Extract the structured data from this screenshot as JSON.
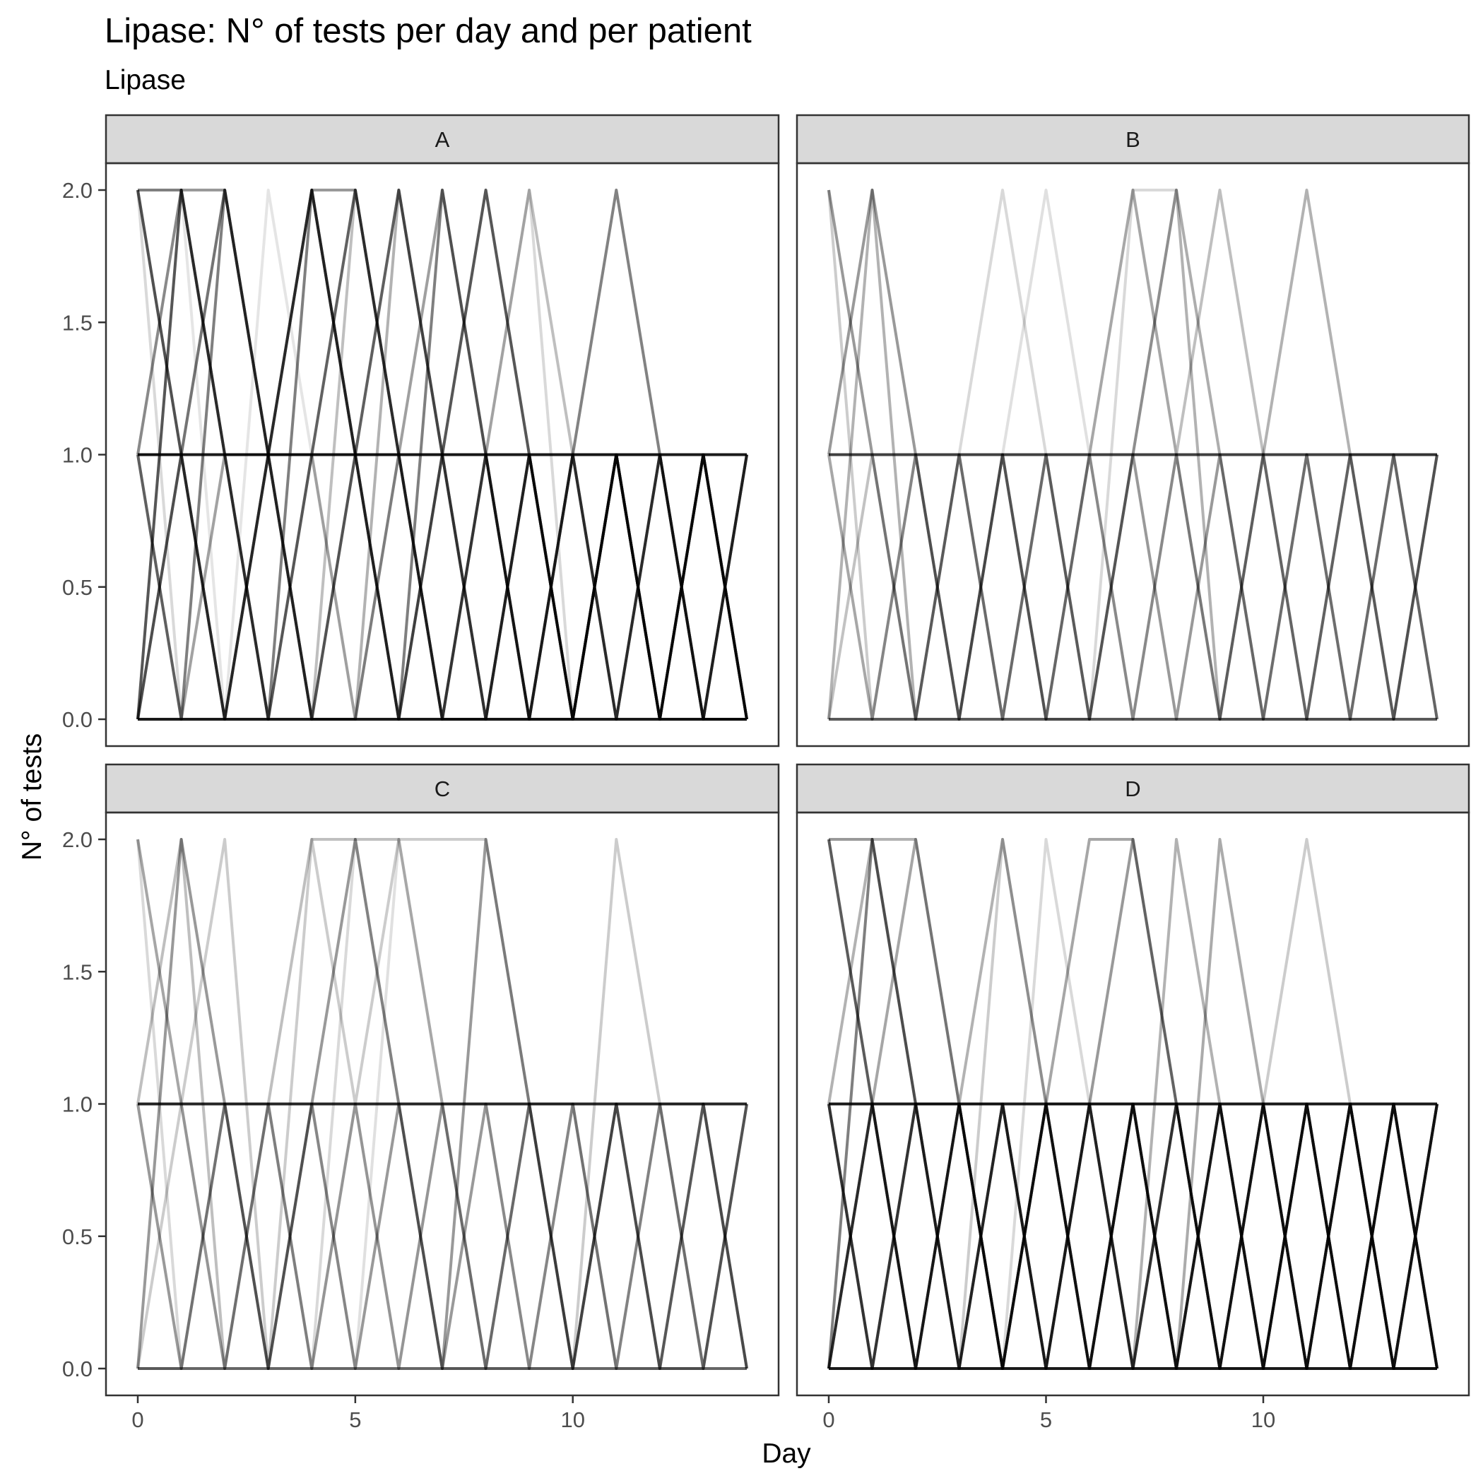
{
  "chart_data": {
    "type": "line",
    "title": "Lipase: N° of tests per day and per patient",
    "subtitle": "Lipase",
    "xlabel": "Day",
    "ylabel": "N° of tests",
    "xlim": [
      0,
      14
    ],
    "ylim": [
      0,
      2
    ],
    "x_ticks": [
      0,
      5,
      10
    ],
    "y_ticks": [
      "0.0",
      "0.5",
      "1.0",
      "1.5",
      "2.0"
    ],
    "grid": false,
    "line_color": "#000000",
    "strip_fill": "#d9d9d9",
    "panels": [
      {
        "label": "A",
        "series": [
          {
            "alpha": 0.9,
            "y": [
              1,
              1,
              1,
              1,
              1,
              1,
              1,
              1,
              1,
              1,
              1,
              1,
              1,
              1,
              1
            ]
          },
          {
            "alpha": 0.9,
            "y": [
              0,
              0,
              0,
              0,
              0,
              0,
              0,
              0,
              0,
              0,
              0,
              0,
              0,
              0,
              0
            ]
          },
          {
            "alpha": 0.55,
            "y": [
              2,
              1,
              0,
              1,
              2,
              1,
              0,
              1,
              2,
              1,
              0,
              1,
              0,
              1,
              0
            ]
          },
          {
            "alpha": 0.55,
            "y": [
              0,
              2,
              1,
              0,
              1,
              2,
              1,
              0,
              1,
              0,
              1,
              0,
              1,
              0,
              1
            ]
          },
          {
            "alpha": 0.5,
            "y": [
              1,
              0,
              2,
              1,
              0,
              1,
              2,
              1,
              0,
              1,
              0,
              1,
              0,
              1,
              0
            ]
          },
          {
            "alpha": 0.5,
            "y": [
              2,
              2,
              1,
              0,
              2,
              1,
              0,
              2,
              1,
              0,
              1,
              0,
              1,
              0,
              0
            ]
          },
          {
            "alpha": 0.45,
            "y": [
              0,
              1,
              0,
              1,
              0,
              0,
              1,
              0,
              0,
              1,
              0,
              1,
              0,
              1,
              0
            ]
          },
          {
            "alpha": 0.4,
            "y": [
              1,
              2,
              2,
              1,
              2,
              2,
              1,
              0,
              1,
              0,
              1,
              2,
              1,
              0,
              1
            ]
          },
          {
            "alpha": 0.35,
            "y": [
              0,
              1,
              2,
              1,
              0,
              1,
              0,
              1,
              0,
              1,
              0,
              1,
              0,
              1,
              0
            ]
          },
          {
            "alpha": 0.3,
            "y": [
              2,
              1,
              0,
              1,
              1,
              0,
              2,
              1,
              0,
              1,
              0,
              1,
              0,
              0,
              1
            ]
          },
          {
            "alpha": 0.3,
            "y": [
              1,
              1,
              2,
              1,
              2,
              1,
              1,
              2,
              1,
              0,
              0,
              1,
              0,
              1,
              0
            ]
          },
          {
            "alpha": 0.25,
            "y": [
              0,
              2,
              1,
              1,
              0,
              2,
              1,
              0,
              1,
              2,
              1,
              0,
              1,
              0,
              1
            ]
          },
          {
            "alpha": 0.25,
            "y": [
              1,
              0,
              1,
              0,
              1,
              1,
              2,
              1,
              2,
              1,
              0,
              1,
              0,
              1,
              0
            ]
          },
          {
            "alpha": 0.15,
            "y": [
              2,
              0,
              1,
              1,
              1,
              2,
              1,
              1,
              0,
              0,
              1,
              2,
              1,
              0,
              1
            ]
          },
          {
            "alpha": 0.15,
            "y": [
              0,
              1,
              0,
              1,
              2,
              1,
              0,
              1,
              1,
              2,
              0,
              1,
              1,
              0,
              0
            ]
          },
          {
            "alpha": 0.1,
            "y": [
              1,
              2,
              0,
              2,
              1,
              0,
              1,
              2,
              1,
              0,
              1,
              1,
              0,
              1,
              0
            ]
          }
        ]
      },
      {
        "label": "B",
        "series": [
          {
            "alpha": 0.75,
            "y": [
              1,
              1,
              1,
              1,
              1,
              1,
              1,
              1,
              1,
              1,
              1,
              1,
              1,
              1,
              1
            ]
          },
          {
            "alpha": 0.65,
            "y": [
              0,
              0,
              0,
              0,
              0,
              0,
              0,
              0,
              0,
              0,
              0,
              0,
              0,
              0,
              0
            ]
          },
          {
            "alpha": 0.4,
            "y": [
              2,
              1,
              0,
              1,
              0,
              1,
              0,
              1,
              0,
              1,
              0,
              1,
              0,
              1,
              0
            ]
          },
          {
            "alpha": 0.4,
            "y": [
              1,
              2,
              1,
              0,
              1,
              0,
              1,
              0,
              1,
              0,
              1,
              0,
              1,
              0,
              1
            ]
          },
          {
            "alpha": 0.3,
            "y": [
              0,
              2,
              0,
              1,
              0,
              1,
              0,
              1,
              2,
              0,
              1,
              2,
              1,
              0,
              1
            ]
          },
          {
            "alpha": 0.25,
            "y": [
              1,
              0,
              1,
              0,
              1,
              0,
              1,
              2,
              1,
              2,
              1,
              0,
              1,
              1,
              0
            ]
          },
          {
            "alpha": 0.2,
            "y": [
              2,
              0,
              1,
              0,
              1,
              0,
              0,
              1,
              2,
              1,
              0,
              1,
              0,
              1,
              1
            ]
          },
          {
            "alpha": 0.15,
            "y": [
              0,
              1,
              0,
              1,
              2,
              1,
              0,
              2,
              2,
              1,
              0,
              0,
              1,
              0,
              1
            ]
          },
          {
            "alpha": 0.12,
            "y": [
              1,
              0,
              1,
              0,
              1,
              2,
              1,
              2,
              1,
              0,
              1,
              0,
              0,
              1,
              0
            ]
          },
          {
            "alpha": 0.1,
            "y": [
              0,
              1,
              0,
              0,
              1,
              0,
              1,
              0,
              1,
              0,
              0,
              1,
              0,
              0,
              1
            ]
          }
        ]
      },
      {
        "label": "C",
        "series": [
          {
            "alpha": 0.85,
            "y": [
              1,
              1,
              1,
              1,
              1,
              1,
              1,
              1,
              1,
              1,
              1,
              1,
              1,
              1,
              1
            ]
          },
          {
            "alpha": 0.6,
            "y": [
              0,
              0,
              0,
              0,
              0,
              0,
              0,
              0,
              0,
              0,
              0,
              0,
              0,
              0,
              0
            ]
          },
          {
            "alpha": 0.4,
            "y": [
              0,
              2,
              1,
              0,
              1,
              0,
              1,
              0,
              1,
              0,
              1,
              0,
              1,
              0,
              1
            ]
          },
          {
            "alpha": 0.4,
            "y": [
              1,
              0,
              1,
              0,
              1,
              2,
              1,
              0,
              2,
              1,
              0,
              1,
              0,
              1,
              0
            ]
          },
          {
            "alpha": 0.35,
            "y": [
              2,
              1,
              0,
              1,
              0,
              1,
              0,
              1,
              0,
              1,
              0,
              1,
              0,
              1,
              0
            ]
          },
          {
            "alpha": 0.25,
            "y": [
              1,
              2,
              0,
              1,
              2,
              2,
              2,
              1,
              0,
              1,
              0,
              1,
              0,
              0,
              1
            ]
          },
          {
            "alpha": 0.2,
            "y": [
              0,
              1,
              2,
              0,
              2,
              1,
              2,
              2,
              2,
              1,
              0,
              2,
              1,
              0,
              1
            ]
          },
          {
            "alpha": 0.15,
            "y": [
              2,
              0,
              1,
              1,
              0,
              2,
              1,
              0,
              0,
              1,
              1,
              0,
              1,
              1,
              0
            ]
          },
          {
            "alpha": 0.12,
            "y": [
              0,
              0,
              1,
              0,
              1,
              0,
              2,
              1,
              0,
              0,
              1,
              0,
              0,
              1,
              0
            ]
          },
          {
            "alpha": 0.1,
            "y": [
              1,
              1,
              0,
              1,
              0,
              1,
              0,
              1,
              1,
              0,
              0,
              1,
              1,
              0,
              1
            ]
          }
        ]
      },
      {
        "label": "D",
        "series": [
          {
            "alpha": 0.9,
            "y": [
              1,
              1,
              1,
              1,
              1,
              1,
              1,
              1,
              1,
              1,
              1,
              1,
              1,
              1,
              1
            ]
          },
          {
            "alpha": 0.9,
            "y": [
              0,
              0,
              0,
              0,
              0,
              0,
              0,
              0,
              0,
              0,
              0,
              0,
              0,
              0,
              0
            ]
          },
          {
            "alpha": 0.6,
            "y": [
              2,
              1,
              0,
              1,
              0,
              1,
              0,
              1,
              0,
              1,
              0,
              1,
              0,
              1,
              0
            ]
          },
          {
            "alpha": 0.6,
            "y": [
              0,
              1,
              0,
              1,
              0,
              1,
              0,
              1,
              0,
              1,
              0,
              1,
              0,
              1,
              0
            ]
          },
          {
            "alpha": 0.55,
            "y": [
              1,
              0,
              1,
              0,
              1,
              0,
              1,
              0,
              1,
              0,
              1,
              0,
              1,
              0,
              1
            ]
          },
          {
            "alpha": 0.5,
            "y": [
              0,
              2,
              1,
              0,
              1,
              0,
              1,
              0,
              1,
              0,
              1,
              0,
              1,
              0,
              1
            ]
          },
          {
            "alpha": 0.45,
            "y": [
              1,
              0,
              1,
              1,
              0,
              1,
              0,
              1,
              0,
              1,
              0,
              1,
              0,
              1,
              0
            ]
          },
          {
            "alpha": 0.4,
            "y": [
              2,
              2,
              1,
              0,
              1,
              0,
              1,
              2,
              1,
              0,
              1,
              0,
              1,
              0,
              1
            ]
          },
          {
            "alpha": 0.35,
            "y": [
              0,
              1,
              2,
              1,
              0,
              1,
              2,
              2,
              1,
              0,
              1,
              0,
              1,
              0,
              0
            ]
          },
          {
            "alpha": 0.3,
            "y": [
              1,
              2,
              2,
              1,
              2,
              1,
              1,
              0,
              2,
              1,
              0,
              1,
              0,
              1,
              0
            ]
          },
          {
            "alpha": 0.25,
            "y": [
              0,
              1,
              0,
              1,
              1,
              0,
              1,
              1,
              0,
              2,
              1,
              0,
              1,
              0,
              1
            ]
          },
          {
            "alpha": 0.2,
            "y": [
              1,
              0,
              1,
              0,
              2,
              1,
              0,
              1,
              1,
              0,
              1,
              2,
              1,
              0,
              1
            ]
          },
          {
            "alpha": 0.15,
            "y": [
              0,
              1,
              0,
              1,
              0,
              2,
              1,
              0,
              1,
              0,
              0,
              1,
              0,
              1,
              0
            ]
          },
          {
            "alpha": 0.1,
            "y": [
              2,
              1,
              0,
              1,
              0,
              1,
              0,
              1,
              0,
              2,
              1,
              0,
              1,
              0,
              1
            ]
          }
        ]
      }
    ]
  }
}
